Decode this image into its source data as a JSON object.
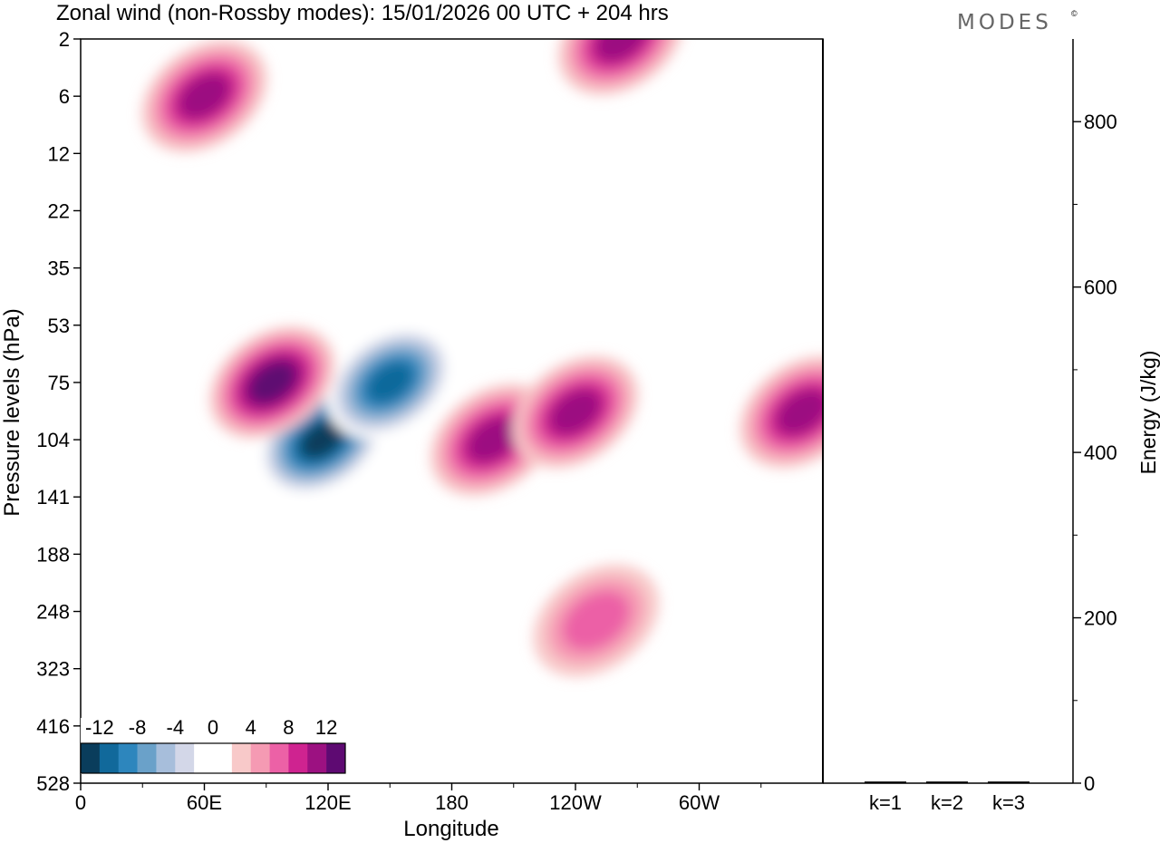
{
  "chart_data": {
    "type": "heatmap",
    "title": "Zonal wind (non-Rossby modes):  15/01/2026  00 UTC  + 204 hrs",
    "brand": "MODES",
    "brand_mark": "©",
    "xlabel": "Longitude",
    "ylabel": "Pressure levels (hPa)",
    "x_ticks": [
      "0",
      "60E",
      "120E",
      "180",
      "120W",
      "60W"
    ],
    "x_tick_degrees": [
      0,
      60,
      120,
      180,
      240,
      300
    ],
    "xlim": [
      0,
      360
    ],
    "y_ticks": [
      "2",
      "6",
      "12",
      "22",
      "35",
      "53",
      "75",
      "104",
      "141",
      "188",
      "248",
      "323",
      "416",
      "528"
    ],
    "colorbar": {
      "tick_labels": [
        "-12",
        "-8",
        "-4",
        "0",
        "4",
        "8",
        "12"
      ],
      "tick_values": [
        -12,
        -8,
        -4,
        0,
        4,
        8,
        12
      ],
      "range": [
        -14,
        14
      ],
      "colors": [
        "#0a3d5c",
        "#11699b",
        "#2d86bd",
        "#6aa1c9",
        "#a7bedb",
        "#d3d7e8",
        "#ffffff",
        "#ffffff",
        "#f8c9c9",
        "#f59ab3",
        "#ec61a6",
        "#cf2390",
        "#9c1181",
        "#5e0a72"
      ]
    },
    "features": [
      {
        "lon": 117,
        "level": 104,
        "value": -14
      },
      {
        "lon": 150,
        "level": 75,
        "value": -12
      },
      {
        "lon": 93,
        "level": 75,
        "value": 12
      },
      {
        "lon": 200,
        "level": 104,
        "value": 10
      },
      {
        "lon": 240,
        "level": 90,
        "value": 10
      },
      {
        "lon": 262,
        "level": 2,
        "value": 10
      },
      {
        "lon": 60,
        "level": 6,
        "value": 10
      },
      {
        "lon": 350,
        "level": 90,
        "value": 10
      },
      {
        "lon": 250,
        "level": 260,
        "value": 6
      }
    ],
    "energy_panel": {
      "ylabel": "Energy (J/kg)",
      "y_ticks": [
        "0",
        "200",
        "400",
        "600",
        "800"
      ],
      "y_tick_values": [
        0,
        200,
        400,
        600,
        800
      ],
      "ylim": [
        0,
        900
      ],
      "categories": [
        "k=1",
        "k=2",
        "k=3"
      ],
      "values": [
        2,
        2,
        2
      ]
    }
  }
}
